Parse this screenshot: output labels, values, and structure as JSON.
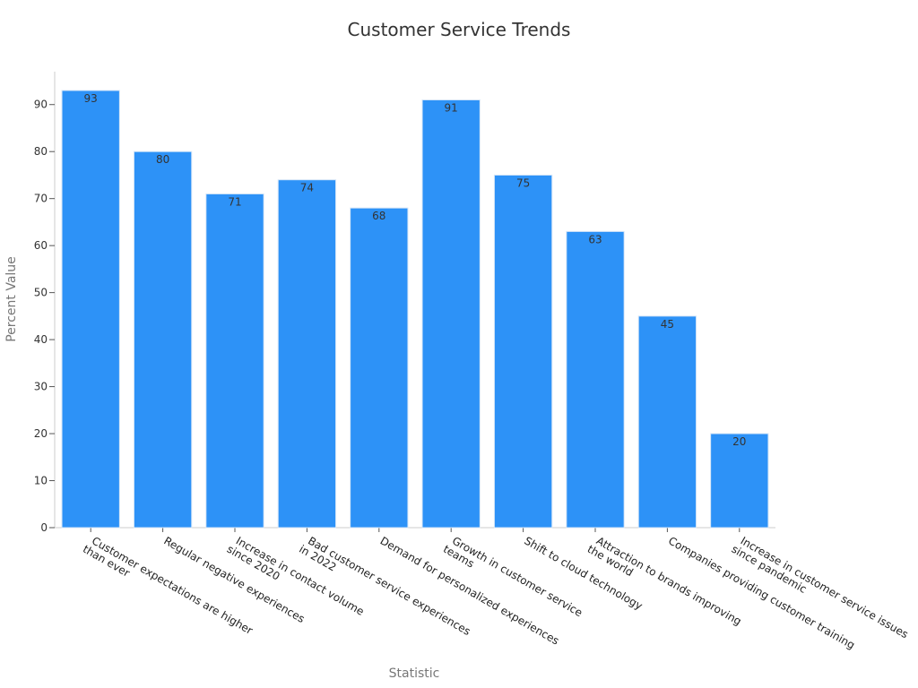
{
  "chart_data": {
    "type": "bar",
    "title": "Customer Service Trends",
    "xlabel": "Statistic",
    "ylabel": "Percent Value",
    "ylim": [
      0,
      97
    ],
    "yticks": [
      0,
      10,
      20,
      30,
      40,
      50,
      60,
      70,
      80,
      90
    ],
    "grid": false,
    "categories": [
      [
        "Customer expectations are higher",
        "than ever"
      ],
      [
        "Regular negative experiences"
      ],
      [
        "Increase in contact volume",
        "since 2020"
      ],
      [
        "Bad customer service experiences",
        "in 2022"
      ],
      [
        "Demand for personalized experiences"
      ],
      [
        "Growth in customer service",
        "teams"
      ],
      [
        "Shift to cloud technology"
      ],
      [
        "Attraction to brands improving",
        "the world"
      ],
      [
        "Companies providing customer training"
      ],
      [
        "Increase in customer service issues",
        "since pandemic"
      ]
    ],
    "values": [
      93,
      80,
      71,
      74,
      68,
      91,
      75,
      63,
      45,
      20
    ],
    "bar_color": "#2d92f7"
  }
}
